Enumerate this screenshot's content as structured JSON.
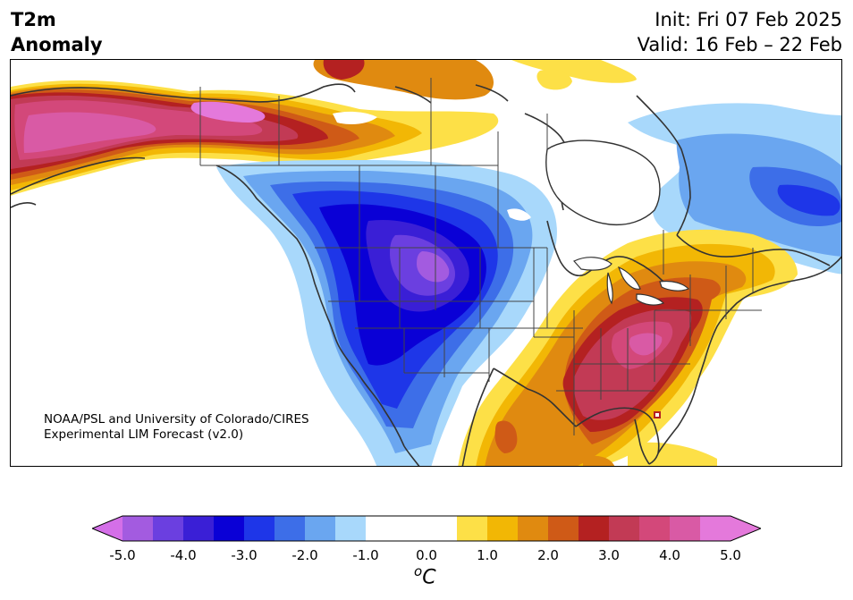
{
  "title": {
    "left_line1": "T2m",
    "left_line2": "Anomaly",
    "right_line1": "Init: Fri 07 Feb 2025",
    "right_line2": "Valid: 16 Feb – 22 Feb"
  },
  "credit": {
    "line1": "NOAA/PSL and University of Colorado/CIRES",
    "line2": "Experimental LIM Forecast (v2.0)"
  },
  "colorbar": {
    "unit_base": "C",
    "unit_sup": "o",
    "tick_labels": [
      "-5.0",
      "-4.0",
      "-3.0",
      "-2.0",
      "-1.0",
      "0.0",
      "1.0",
      "2.0",
      "3.0",
      "4.0",
      "5.0"
    ],
    "bins": [
      {
        "lo": -5.0,
        "hi": -4.5,
        "color": "#a35be0"
      },
      {
        "lo": -4.5,
        "hi": -4.0,
        "color": "#6b3fe0"
      },
      {
        "lo": -4.0,
        "hi": -3.5,
        "color": "#3a1fd6"
      },
      {
        "lo": -3.5,
        "hi": -3.0,
        "color": "#0a00d6"
      },
      {
        "lo": -3.0,
        "hi": -2.5,
        "color": "#1e36e8"
      },
      {
        "lo": -2.5,
        "hi": -2.0,
        "color": "#3d6ee8"
      },
      {
        "lo": -2.0,
        "hi": -1.5,
        "color": "#6aa6f0"
      },
      {
        "lo": -1.5,
        "hi": -1.0,
        "color": "#a8d8fb"
      },
      {
        "lo": -1.0,
        "hi": 0.5,
        "color": "#ffffff"
      },
      {
        "lo": 0.5,
        "hi": 1.0,
        "color": "#fde047"
      },
      {
        "lo": 1.0,
        "hi": 1.5,
        "color": "#f2b705"
      },
      {
        "lo": 1.5,
        "hi": 2.0,
        "color": "#e08a10"
      },
      {
        "lo": 2.0,
        "hi": 2.5,
        "color": "#cf5a17"
      },
      {
        "lo": 2.5,
        "hi": 3.0,
        "color": "#b42121"
      },
      {
        "lo": 3.0,
        "hi": 3.5,
        "color": "#c23a55"
      },
      {
        "lo": 3.5,
        "hi": 4.0,
        "color": "#d3487a"
      },
      {
        "lo": 4.0,
        "hi": 4.5,
        "color": "#d95aa5"
      },
      {
        "lo": 4.5,
        "hi": 5.0,
        "color": "#e479db"
      }
    ],
    "extend_low_color": "#d46fe8",
    "extend_high_color": "#e479db"
  },
  "map_colors": {
    "land_outline": "#333333",
    "state_border": "#444444"
  }
}
